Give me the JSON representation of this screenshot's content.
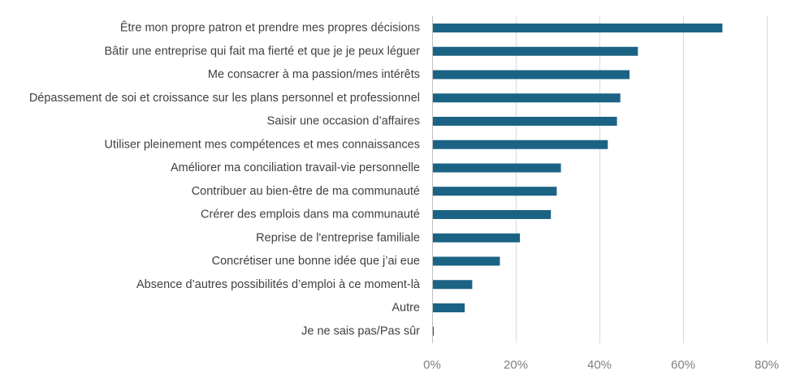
{
  "chart_data": {
    "type": "bar",
    "orientation": "horizontal",
    "categories": [
      "Être mon propre patron et prendre mes propres décisions",
      "Bâtir une entreprise qui fait ma fierté et que je je peux léguer",
      "Me consacrer à ma passion/mes intérêts",
      "Dépassement de soi et croissance sur les plans personnel et professionnel",
      "Saisir une occasion d’affaires",
      "Utiliser pleinement mes compétences et mes connaissances",
      "Améliorer ma conciliation travail-vie personnelle",
      "Contribuer au bien-être de ma communauté",
      "Crérer des emplois dans ma communauté",
      "Reprise de l'entreprise familiale",
      "Concrétiser une bonne idée que j’ai eue",
      "Absence d’autres possibilités d’emploi à ce moment-là",
      "Autre",
      "Je ne sais pas/Pas sûr"
    ],
    "values": [
      69.2,
      49.0,
      47.0,
      44.8,
      44.0,
      41.8,
      30.6,
      29.6,
      28.2,
      20.8,
      16.0,
      9.4,
      7.6,
      0.2
    ],
    "xlim": [
      0,
      80
    ],
    "x_ticks": [
      0,
      20,
      40,
      60,
      80
    ],
    "x_tick_labels": [
      "0%",
      "20%",
      "40%",
      "60%",
      "80%"
    ],
    "grid": true,
    "bar_color": "#1b6384",
    "title": "",
    "xlabel": "",
    "ylabel": ""
  }
}
